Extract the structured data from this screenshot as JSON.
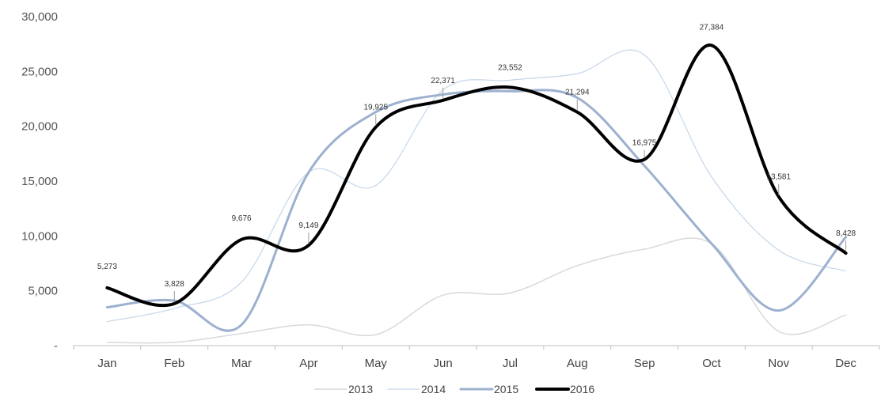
{
  "chart_data": {
    "type": "line",
    "title": "",
    "xlabel": "",
    "ylabel": "",
    "categories": [
      "Jan",
      "Feb",
      "Mar",
      "Apr",
      "May",
      "Jun",
      "Jul",
      "Aug",
      "Sep",
      "Oct",
      "Nov",
      "Dec"
    ],
    "ylim": [
      0,
      30000
    ],
    "yticks": [
      0,
      5000,
      10000,
      15000,
      20000,
      25000,
      30000
    ],
    "ytick_labels": [
      "-",
      "5,000",
      "10,000",
      "15,000",
      "20,000",
      "25,000",
      "30,000"
    ],
    "grid": false,
    "legend_position": "bottom",
    "series": [
      {
        "name": "2013",
        "color": "#d9d9d9",
        "values": [
          300,
          300,
          1100,
          1900,
          1000,
          4600,
          4800,
          7300,
          8800,
          9300,
          1300,
          2800
        ]
      },
      {
        "name": "2014",
        "color": "#c5d6ea",
        "values": [
          2200,
          3400,
          5800,
          15800,
          14600,
          23300,
          24200,
          24800,
          26500,
          15400,
          8700,
          6800
        ]
      },
      {
        "name": "2015",
        "color": "#9db1cf",
        "values": [
          3500,
          4100,
          1900,
          15800,
          21300,
          22900,
          23200,
          22600,
          16400,
          9300,
          3200,
          9900
        ]
      },
      {
        "name": "2016",
        "color": "#000000",
        "values": [
          5273,
          3828,
          9676,
          9149,
          19925,
          22371,
          23552,
          21294,
          16975,
          27384,
          13581,
          8428
        ],
        "data_labels": [
          "5,273",
          "3,828",
          "9,676",
          "9,149",
          "19,925",
          "22,371",
          "23,552",
          "21,294",
          "16,975",
          "27,384",
          "13,581",
          "8,428"
        ]
      }
    ]
  }
}
